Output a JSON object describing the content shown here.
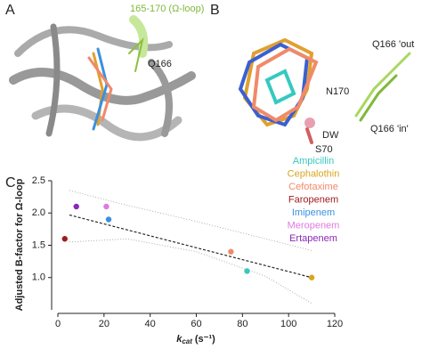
{
  "panels": {
    "a": "A",
    "b": "B",
    "c": "C"
  },
  "annotations": {
    "loop": "165-170 (Ω-loop)",
    "q166_a": "Q166",
    "q166_out": "Q166 'out",
    "n170": "N170",
    "q166_in": "Q166 'in'",
    "dw": "DW",
    "s70": "S70"
  },
  "chart_data": {
    "type": "scatter",
    "ylabel": "Adjusted B-factor for Ω-loop",
    "xlabel": {
      "symbol": "k",
      "subscript": "cat",
      "unit": "(s⁻¹)"
    },
    "xlim": [
      0,
      120
    ],
    "xticks": [
      0,
      20,
      40,
      60,
      80,
      100,
      120
    ],
    "ylim": [
      0.5,
      2.5
    ],
    "yticks": [
      {
        "value": 1.0,
        "label": "1.0"
      },
      {
        "value": 1.5,
        "label": "1.5"
      },
      {
        "value": 2.0,
        "label": "2.0"
      },
      {
        "value": 2.5,
        "label": "2.5"
      }
    ],
    "series": [
      {
        "name": "Ampicillin",
        "color": "#35c9c0",
        "x": [
          82
        ],
        "values": [
          1.1
        ]
      },
      {
        "name": "Cephalothin",
        "color": "#d9a520",
        "x": [
          110
        ],
        "values": [
          1.0
        ]
      },
      {
        "name": "Cefotaxime",
        "color": "#f08a6a",
        "x": [
          75
        ],
        "values": [
          1.4
        ]
      },
      {
        "name": "Faropenem",
        "color": "#a01c1c",
        "x": [
          3
        ],
        "values": [
          1.6
        ]
      },
      {
        "name": "Imipenem",
        "color": "#3a90e0",
        "x": [
          22
        ],
        "values": [
          1.9
        ]
      },
      {
        "name": "Meropenem",
        "color": "#e07ae0",
        "x": [
          21
        ],
        "values": [
          2.1
        ]
      },
      {
        "name": "Ertapenem",
        "color": "#8a28b8",
        "x": [
          8
        ],
        "values": [
          2.1
        ]
      }
    ],
    "fit": {
      "x": [
        5,
        110
      ],
      "values": [
        1.97,
        1.0
      ]
    },
    "band_upper": {
      "x": [
        5,
        30,
        60,
        90,
        110
      ],
      "values": [
        2.35,
        2.12,
        1.87,
        1.6,
        1.42
      ]
    },
    "band_lower": {
      "x": [
        5,
        30,
        60,
        90,
        110
      ],
      "values": [
        1.55,
        1.6,
        1.4,
        1.02,
        0.6
      ]
    }
  }
}
